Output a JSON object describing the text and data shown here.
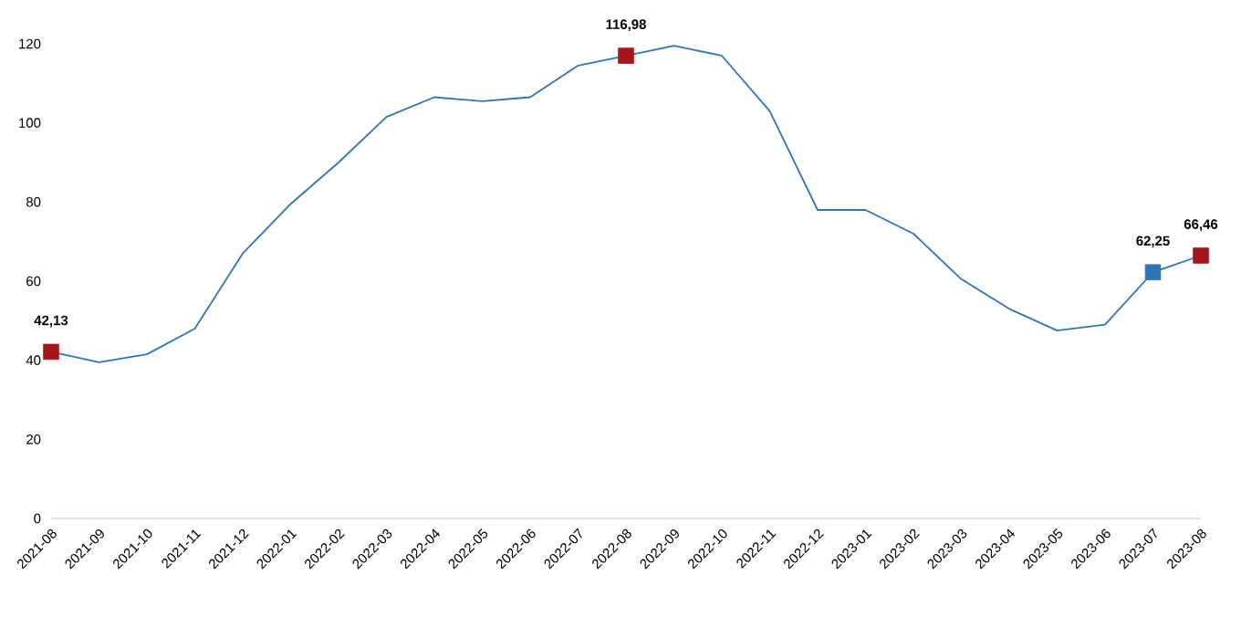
{
  "chart_data": {
    "type": "line",
    "categories": [
      "2021-08",
      "2021-09",
      "2021-10",
      "2021-11",
      "2021-12",
      "2022-01",
      "2022-02",
      "2022-03",
      "2022-04",
      "2022-05",
      "2022-06",
      "2022-07",
      "2022-08",
      "2022-09",
      "2022-10",
      "2022-11",
      "2022-12",
      "2023-01",
      "2023-02",
      "2023-03",
      "2023-04",
      "2023-05",
      "2023-06",
      "2023-07",
      "2023-08"
    ],
    "series": [
      {
        "color": "#2e75b6",
        "marker": "none",
        "values": [
          42.13,
          39.5,
          41.5,
          48,
          67,
          79.5,
          90,
          101.5,
          106.5,
          105.5,
          106.5,
          114.5,
          116.98,
          119.5,
          117,
          103,
          78,
          78,
          72,
          60.5,
          53,
          47.5,
          49,
          62.25,
          66.46
        ]
      },
      {
        "type": "scatter",
        "color": "#a5161c",
        "marker": "square",
        "values": [
          42.13,
          null,
          null,
          null,
          null,
          null,
          null,
          null,
          null,
          null,
          null,
          null,
          116.98,
          null,
          null,
          null,
          null,
          null,
          null,
          null,
          null,
          null,
          null,
          null,
          66.46
        ],
        "value_labels": [
          "42,13",
          null,
          null,
          null,
          null,
          null,
          null,
          null,
          null,
          null,
          null,
          null,
          "116,98",
          null,
          null,
          null,
          null,
          null,
          null,
          null,
          null,
          null,
          null,
          null,
          "66,46"
        ]
      },
      {
        "type": "scatter",
        "color": "#2e75b6",
        "marker": "square",
        "values": [
          null,
          null,
          null,
          null,
          null,
          null,
          null,
          null,
          null,
          null,
          null,
          null,
          null,
          null,
          null,
          null,
          null,
          null,
          null,
          null,
          null,
          null,
          null,
          62.25,
          null
        ],
        "value_labels": [
          null,
          null,
          null,
          null,
          null,
          null,
          null,
          null,
          null,
          null,
          null,
          null,
          null,
          null,
          null,
          null,
          null,
          null,
          null,
          null,
          null,
          null,
          null,
          "62,25",
          null
        ]
      }
    ],
    "ylim": [
      0,
      120
    ],
    "yticks": [
      0,
      20,
      40,
      60,
      80,
      100,
      120
    ],
    "grid": false
  }
}
